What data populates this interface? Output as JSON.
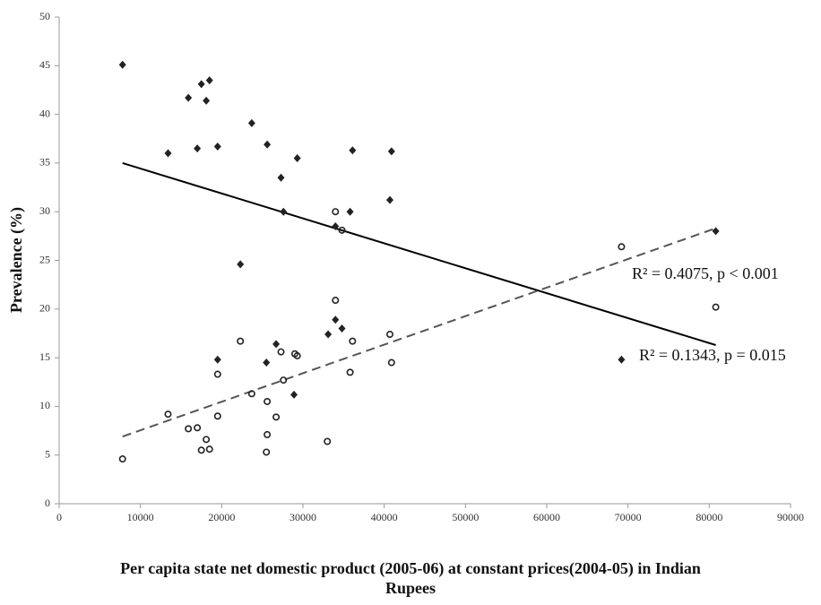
{
  "chart_data": {
    "type": "scatter",
    "y_label": "Prevalence (%)",
    "x_label": "Per capita state net domestic product (2005-06) at constant prices(2004-05) in Indian Rupees",
    "xlim": [
      0,
      90000
    ],
    "xticks": [
      0,
      10000,
      20000,
      30000,
      40000,
      50000,
      60000,
      70000,
      80000,
      90000
    ],
    "ylim": [
      0,
      50
    ],
    "yticks": [
      0,
      5,
      10,
      15,
      20,
      25,
      30,
      35,
      40,
      45,
      50
    ],
    "grid": false,
    "series": [
      {
        "marker": "diamond",
        "color": "#222222",
        "x": [
          7800,
          13400,
          15900,
          17000,
          17500,
          18100,
          18500,
          19500,
          22300,
          23700,
          25600,
          27300,
          27600,
          29300,
          19500,
          25500,
          26700,
          28900,
          33100,
          34000,
          34800,
          34000,
          35800,
          36100,
          40700,
          40900,
          80800,
          69200
        ],
        "values": [
          45.1,
          36,
          41.7,
          36.5,
          43.1,
          41.4,
          43.5,
          36.7,
          24.6,
          39.1,
          36.9,
          33.5,
          30,
          35.5,
          14.8,
          14.5,
          16.4,
          11.2,
          17.4,
          18.9,
          18,
          28.5,
          30,
          36.3,
          31.2,
          36.2,
          28,
          14.8
        ]
      },
      {
        "marker": "circle-open",
        "color": "#222222",
        "x": [
          7800,
          13400,
          15900,
          17000,
          17500,
          18100,
          18500,
          19500,
          19500,
          22300,
          23700,
          25500,
          25600,
          25600,
          26700,
          27300,
          27600,
          29000,
          29300,
          33000,
          34000,
          34000,
          34800,
          35800,
          36100,
          40700,
          40900,
          69200,
          80800
        ],
        "values": [
          4.6,
          9.2,
          7.7,
          7.8,
          5.5,
          6.6,
          5.6,
          9,
          13.3,
          16.7,
          11.3,
          5.3,
          7.1,
          10.5,
          8.9,
          15.6,
          12.7,
          15.4,
          15.2,
          6.4,
          30,
          20.9,
          28.1,
          13.5,
          16.7,
          17.4,
          14.5,
          26.4,
          20.2
        ]
      }
    ],
    "trendlines": [
      {
        "style": "solid",
        "color": "#000000",
        "x": [
          7800,
          80800
        ],
        "values": [
          35,
          16.3
        ]
      },
      {
        "style": "dashed",
        "color": "#555555",
        "x": [
          7800,
          80800
        ],
        "values": [
          6.9,
          28.3
        ]
      }
    ],
    "annotations": [
      "R² = 0.4075, p < 0.001",
      "R² = 0.1343, p = 0.015"
    ]
  }
}
